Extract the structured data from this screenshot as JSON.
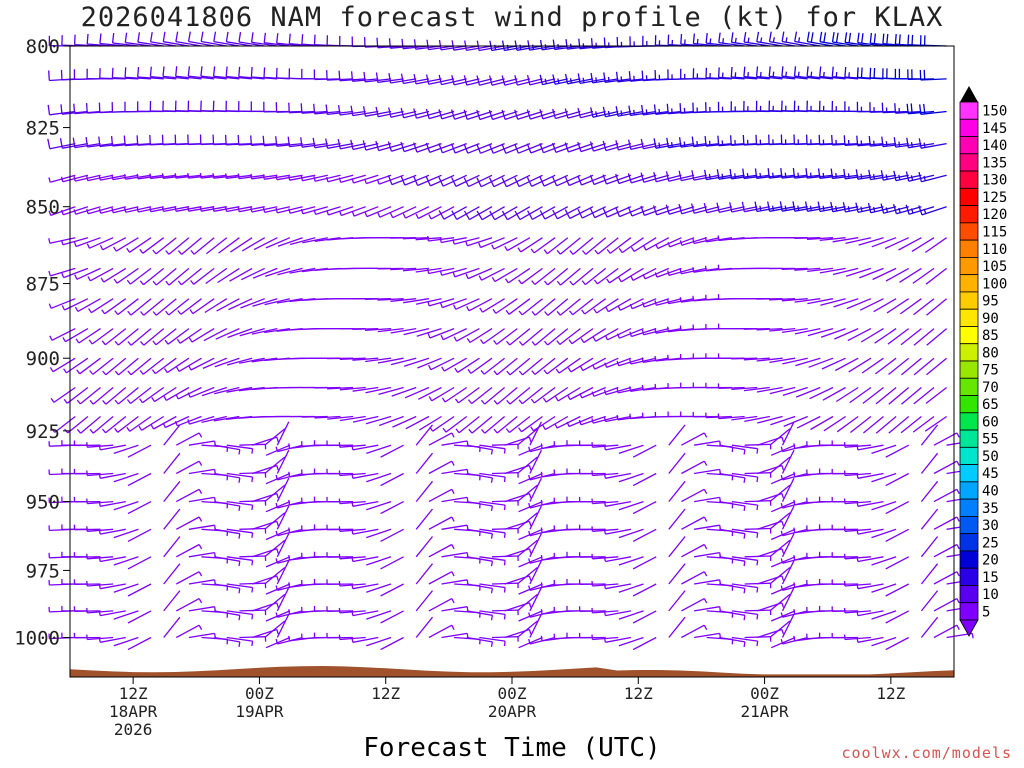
{
  "chart_data": {
    "type": "wind_barb_time_height",
    "title": "2026041806 NAM forecast wind profile (kt) for KLAX",
    "xlabel": "Forecast Time (UTC)",
    "credit": "coolwx.com/models",
    "y_axis": {
      "scale": "log-pressure",
      "inverted": true,
      "range_hPa": [
        800,
        1015
      ],
      "ticks": [
        800,
        825,
        850,
        875,
        900,
        925,
        950,
        975,
        1000
      ]
    },
    "x_axis": {
      "range_hours": [
        0,
        84
      ],
      "ticks": [
        {
          "hour": 6,
          "line1": "12Z",
          "line2": "18APR",
          "line3": "2026"
        },
        {
          "hour": 18,
          "line1": "00Z",
          "line2": "19APR",
          "line3": ""
        },
        {
          "hour": 30,
          "line1": "12Z",
          "line2": "",
          "line3": ""
        },
        {
          "hour": 42,
          "line1": "00Z",
          "line2": "20APR",
          "line3": ""
        },
        {
          "hour": 54,
          "line1": "12Z",
          "line2": "",
          "line3": ""
        },
        {
          "hour": 66,
          "line1": "00Z",
          "line2": "21APR",
          "line3": ""
        },
        {
          "hour": 78,
          "line1": "12Z",
          "line2": "",
          "line3": ""
        }
      ]
    },
    "colorbar": {
      "unit": "kt",
      "levels": [
        5,
        10,
        15,
        20,
        25,
        30,
        35,
        40,
        45,
        50,
        55,
        60,
        65,
        70,
        75,
        80,
        85,
        90,
        95,
        100,
        105,
        110,
        115,
        120,
        125,
        130,
        135,
        140,
        145,
        150
      ],
      "colors": [
        "#7f00ff",
        "#5a00f0",
        "#2a00e6",
        "#0000d8",
        "#0033e6",
        "#0059f0",
        "#0080ff",
        "#00a6ff",
        "#00ccff",
        "#00e6cc",
        "#00e699",
        "#00e64d",
        "#33e600",
        "#66e600",
        "#99e600",
        "#ccf000",
        "#ffff00",
        "#ffe600",
        "#ffcc00",
        "#ffb300",
        "#ff9900",
        "#ff8000",
        "#ff4d00",
        "#ff1a00",
        "#ff0000",
        "#ff0040",
        "#ff0080",
        "#ff00b3",
        "#ff00e6",
        "#ff33ff"
      ]
    },
    "terrain": {
      "color": "#a0522d",
      "surface_pressure_hPa_approx": 1012
    },
    "wind_field_summary": {
      "upper_levels_800_850": "westerly 10-20 kt increasing late period",
      "mid_levels_875_925": "westerly to southwesterly 5-15 kt",
      "low_levels_950_1000": "light and variable, diurnal sea-breeze pattern",
      "max_speed_kt_approx": 20
    }
  }
}
